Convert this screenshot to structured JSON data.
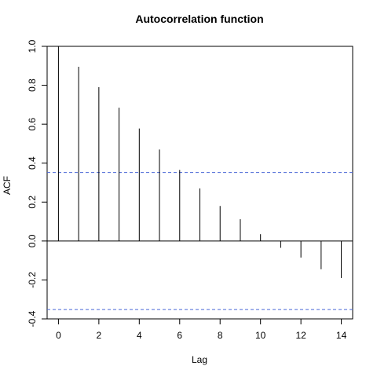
{
  "chart_data": {
    "type": "bar",
    "title": "Autocorrelation function",
    "xlabel": "Lag",
    "ylabel": "ACF",
    "x": [
      0,
      1,
      2,
      3,
      4,
      5,
      6,
      7,
      8,
      9,
      10,
      11,
      12,
      13,
      14
    ],
    "values": [
      1.0,
      0.895,
      0.79,
      0.685,
      0.578,
      0.47,
      0.365,
      0.27,
      0.18,
      0.112,
      0.035,
      -0.035,
      -0.085,
      -0.145,
      -0.19
    ],
    "xlim": [
      -0.56,
      14.56
    ],
    "ylim": [
      -0.4,
      1.0
    ],
    "xticks": [
      0,
      2,
      4,
      6,
      8,
      10,
      12,
      14
    ],
    "yticks": [
      -0.4,
      -0.2,
      0.0,
      0.2,
      0.4,
      0.6,
      0.8,
      1.0
    ],
    "confidence_bounds": {
      "upper": 0.352,
      "lower": -0.352,
      "color": "#4a67d6"
    },
    "grid": false,
    "legend": "none"
  }
}
